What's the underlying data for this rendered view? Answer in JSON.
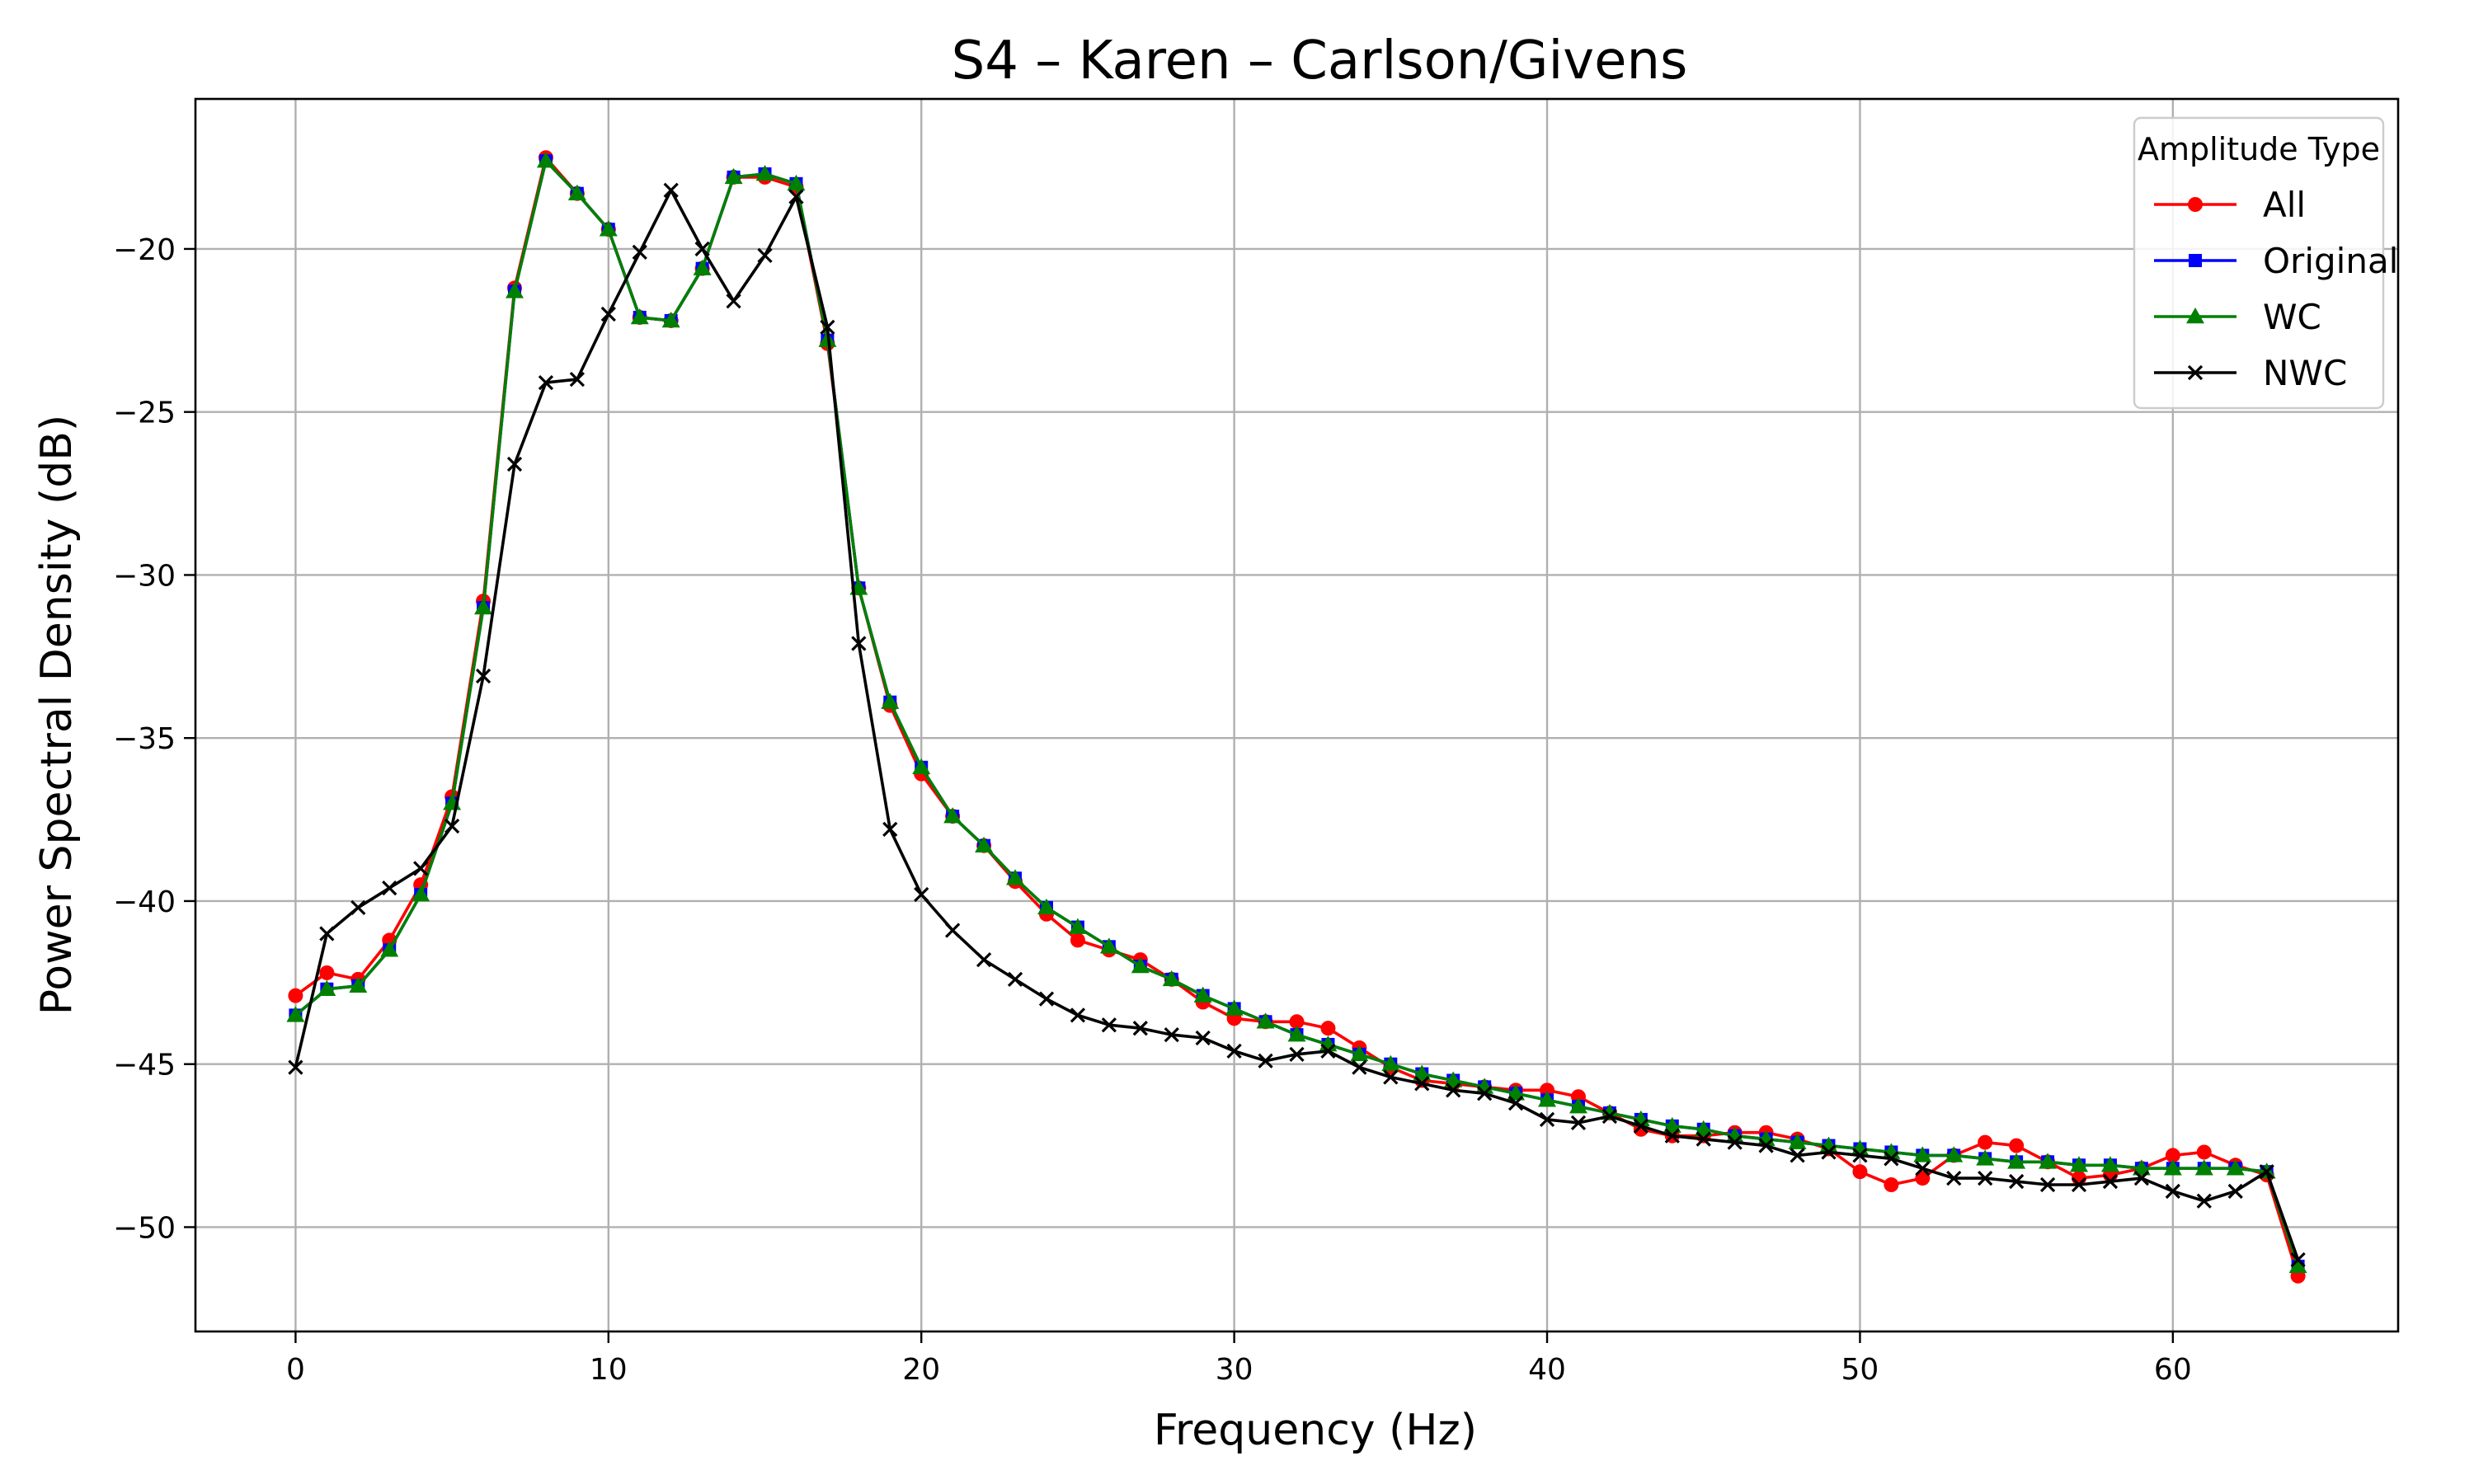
{
  "chart_data": {
    "type": "line",
    "title": "S4 – Karen – Carlson/Givens",
    "xlabel": "Frequency (Hz)",
    "ylabel": "Power Spectral Density (dB)",
    "xlim": [
      -3.2,
      67.2
    ],
    "ylim": [
      -53.2,
      -15.4
    ],
    "xticks": [
      0,
      10,
      20,
      30,
      40,
      50,
      60
    ],
    "xtick_labels": [
      "0",
      "10",
      "20",
      "30",
      "40",
      "50",
      "60"
    ],
    "yticks": [
      -20,
      -25,
      -30,
      -35,
      -40,
      -45,
      -50
    ],
    "ytick_labels": [
      "−20",
      "−25",
      "−30",
      "−35",
      "−40",
      "−45",
      "−50"
    ],
    "grid": true,
    "legend": {
      "title": "Amplitude Type",
      "position": "top-right"
    },
    "x": [
      0,
      1,
      2,
      3,
      4,
      5,
      6,
      7,
      8,
      9,
      10,
      11,
      12,
      13,
      14,
      15,
      16,
      17,
      18,
      19,
      20,
      21,
      22,
      23,
      24,
      25,
      26,
      27,
      28,
      29,
      30,
      31,
      32,
      33,
      34,
      35,
      36,
      37,
      38,
      39,
      40,
      41,
      42,
      43,
      44,
      45,
      46,
      47,
      48,
      49,
      50,
      51,
      52,
      53,
      54,
      55,
      56,
      57,
      58,
      59,
      60,
      61,
      62,
      63,
      64
    ],
    "series": [
      {
        "name": "All",
        "color": "#ff0000",
        "marker": "circle",
        "values": [
          -42.9,
          -42.2,
          -42.4,
          -41.2,
          -39.5,
          -36.8,
          -30.8,
          -21.2,
          -17.2,
          -18.3,
          -19.4,
          -22.1,
          -22.2,
          -20.6,
          -17.8,
          -17.8,
          -18.1,
          -22.9,
          -30.4,
          -34.0,
          -36.1,
          -37.4,
          -38.3,
          -39.4,
          -40.4,
          -41.2,
          -41.5,
          -41.8,
          -42.4,
          -43.1,
          -43.6,
          -43.7,
          -43.7,
          -43.9,
          -44.5,
          -45.1,
          -45.5,
          -45.6,
          -45.7,
          -45.8,
          -45.8,
          -46.0,
          -46.5,
          -47.0,
          -47.2,
          -47.2,
          -47.1,
          -47.1,
          -47.3,
          -47.6,
          -48.3,
          -48.7,
          -48.5,
          -47.8,
          -47.4,
          -47.5,
          -48.0,
          -48.5,
          -48.4,
          -48.2,
          -47.8,
          -47.7,
          -48.1,
          -48.4,
          -51.5
        ]
      },
      {
        "name": "Original",
        "color": "#0000ff",
        "marker": "square",
        "values": [
          -43.5,
          -42.7,
          -42.6,
          -41.5,
          -39.8,
          -37.0,
          -31.0,
          -21.3,
          -17.3,
          -18.3,
          -19.4,
          -22.1,
          -22.2,
          -20.6,
          -17.8,
          -17.7,
          -18.0,
          -22.8,
          -30.4,
          -33.9,
          -35.9,
          -37.4,
          -38.3,
          -39.3,
          -40.2,
          -40.8,
          -41.4,
          -42.0,
          -42.4,
          -42.9,
          -43.3,
          -43.7,
          -44.1,
          -44.4,
          -44.7,
          -45.0,
          -45.3,
          -45.5,
          -45.7,
          -45.9,
          -46.1,
          -46.3,
          -46.5,
          -46.7,
          -46.9,
          -47.0,
          -47.2,
          -47.3,
          -47.4,
          -47.5,
          -47.6,
          -47.7,
          -47.8,
          -47.8,
          -47.9,
          -48.0,
          -48.0,
          -48.1,
          -48.1,
          -48.2,
          -48.2,
          -48.2,
          -48.2,
          -48.3,
          -51.2
        ]
      },
      {
        "name": "WC",
        "color": "#008000",
        "marker": "triangle",
        "values": [
          -43.5,
          -42.7,
          -42.6,
          -41.5,
          -39.8,
          -37.0,
          -31.0,
          -21.3,
          -17.3,
          -18.3,
          -19.4,
          -22.1,
          -22.2,
          -20.6,
          -17.8,
          -17.7,
          -18.0,
          -22.8,
          -30.4,
          -33.9,
          -35.9,
          -37.4,
          -38.3,
          -39.3,
          -40.2,
          -40.8,
          -41.4,
          -42.0,
          -42.4,
          -42.9,
          -43.3,
          -43.7,
          -44.1,
          -44.4,
          -44.7,
          -45.0,
          -45.3,
          -45.5,
          -45.7,
          -45.9,
          -46.1,
          -46.3,
          -46.5,
          -46.7,
          -46.9,
          -47.0,
          -47.2,
          -47.3,
          -47.4,
          -47.5,
          -47.6,
          -47.7,
          -47.8,
          -47.8,
          -47.9,
          -48.0,
          -48.0,
          -48.1,
          -48.1,
          -48.2,
          -48.2,
          -48.2,
          -48.2,
          -48.3,
          -51.2
        ]
      },
      {
        "name": "NWC",
        "color": "#000000",
        "marker": "x",
        "values": [
          -45.1,
          -41.0,
          -40.2,
          -39.6,
          -39.0,
          -37.7,
          -33.1,
          -26.6,
          -24.1,
          -24.0,
          -22.0,
          -20.1,
          -18.2,
          -20.0,
          -21.6,
          -20.2,
          -18.4,
          -22.4,
          -32.1,
          -37.8,
          -39.8,
          -40.9,
          -41.8,
          -42.4,
          -43.0,
          -43.5,
          -43.8,
          -43.9,
          -44.1,
          -44.2,
          -44.6,
          -44.9,
          -44.7,
          -44.6,
          -45.1,
          -45.4,
          -45.6,
          -45.8,
          -45.9,
          -46.2,
          -46.7,
          -46.8,
          -46.6,
          -46.9,
          -47.2,
          -47.3,
          -47.4,
          -47.5,
          -47.8,
          -47.7,
          -47.8,
          -47.9,
          -48.2,
          -48.5,
          -48.5,
          -48.6,
          -48.7,
          -48.7,
          -48.6,
          -48.5,
          -48.9,
          -49.2,
          -48.9,
          -48.3,
          -51.0
        ]
      }
    ]
  }
}
